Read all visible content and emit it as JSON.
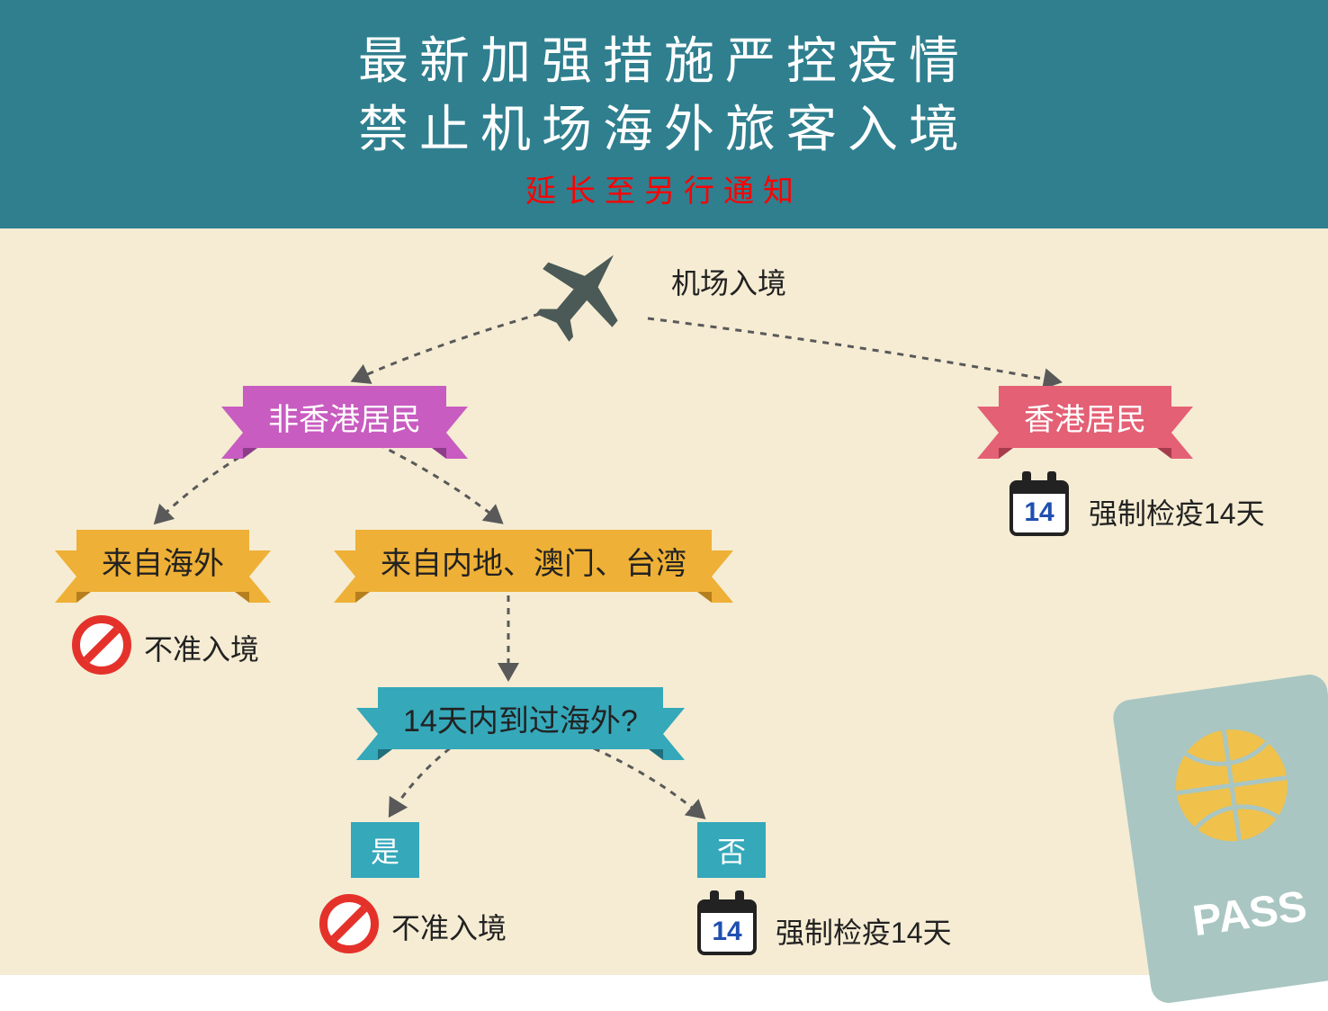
{
  "colors": {
    "header_bg": "#2f7f8f",
    "header_text": "#ffffff",
    "header_sub": "#ff0000",
    "canvas_bg": "#f5ecd3",
    "text": "#222222",
    "magenta": "#c85cc0",
    "magenta_dark": "#8e3c8a",
    "pink": "#e46075",
    "pink_dark": "#a63b4c",
    "orange": "#eeb036",
    "orange_dark": "#b67f1e",
    "teal": "#35a8ba",
    "teal_dark": "#1f6f7c",
    "arrow": "#595959",
    "calendar_num": "#1f4fb0",
    "plane": "#4b5a57",
    "passport_body": "#a9c6c2",
    "passport_globe": "#f0c14b",
    "passport_text": "#ffffff"
  },
  "header": {
    "line1": "最新加强措施严控疫情",
    "line2": "禁止机场海外旅客入境",
    "sub": "延长至另行通知"
  },
  "flow": {
    "entry": "机场入境",
    "non_resident": "非香港居民",
    "resident": "香港居民",
    "from_overseas": "来自海外",
    "from_mmt": "来自内地、澳门、台湾",
    "q14": "14天内到过海外?",
    "yes": "是",
    "no": "否",
    "deny": "不准入境",
    "quarantine": "强制检疫14天",
    "calendar_num": "14"
  },
  "passport_label": "PASS"
}
